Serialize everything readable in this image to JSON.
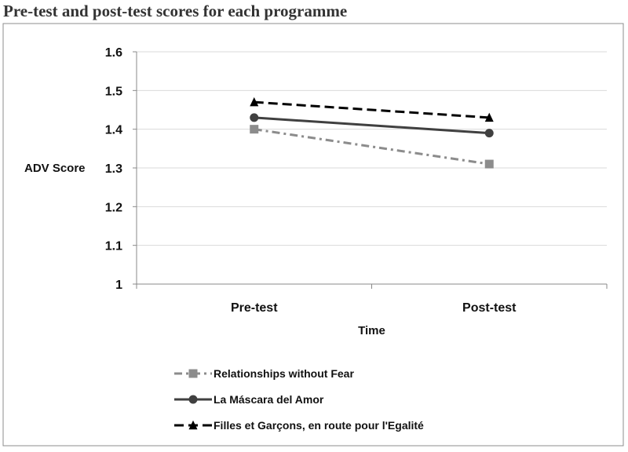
{
  "page_title": "Pre-test and post-test scores for each programme",
  "chart_data": {
    "type": "line",
    "title": "Pre-test and post-test scores for each programme",
    "xlabel": "Time",
    "ylabel": "ADV Score",
    "categories": [
      "Pre-test",
      "Post-test"
    ],
    "ylim": [
      1,
      1.6
    ],
    "yticks": [
      "1",
      "1.1",
      "1.2",
      "1.3",
      "1.4",
      "1.5",
      "1.6"
    ],
    "grid": true,
    "legend_position": "bottom",
    "series": [
      {
        "name": "Relationships without Fear",
        "values": [
          1.4,
          1.31
        ],
        "color": "#8c8c8c",
        "line_style": "dash-dot",
        "marker": "square"
      },
      {
        "name": "La Máscara del Amor",
        "values": [
          1.43,
          1.39
        ],
        "color": "#404040",
        "line_style": "solid",
        "marker": "circle"
      },
      {
        "name": "Filles et Garçons, en route pour l'Egalité",
        "values": [
          1.47,
          1.43
        ],
        "color": "#000000",
        "line_style": "dashed",
        "marker": "triangle"
      }
    ]
  }
}
